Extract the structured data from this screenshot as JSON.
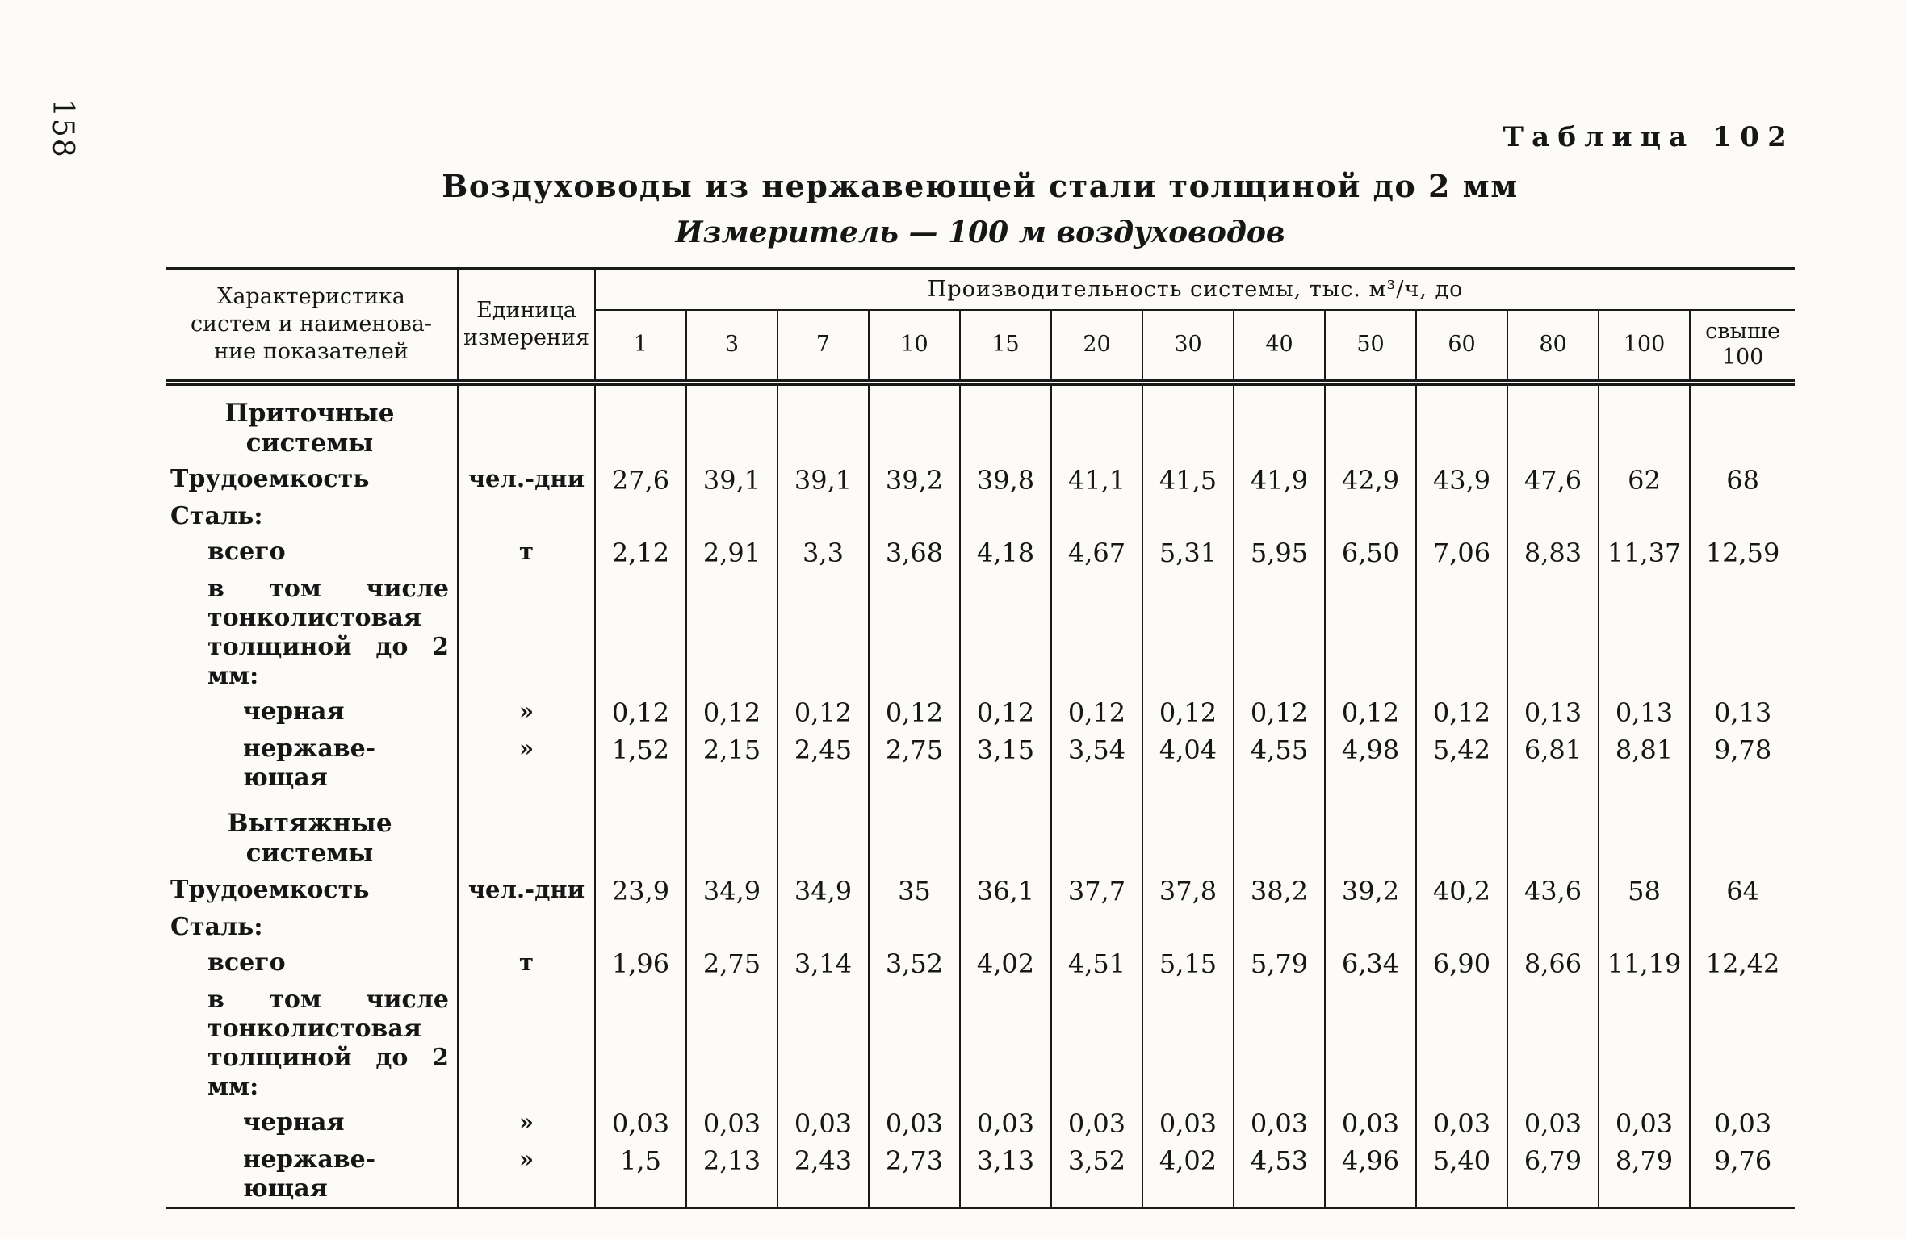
{
  "page": {
    "page_number": "158",
    "table_label": "Таблица 102",
    "title": "Воздуховоды из нержавеющей стали толщиной до 2 мм",
    "subtitle": "Измеритель — 100 м воздуховодов"
  },
  "table": {
    "col1_header": "Характеристика\nсистем и наименова-\nние показателей",
    "col2_header": "Единица\nизмерения",
    "span_header": "Производительность системы, тыс. м³/ч, до",
    "capacity_columns": [
      "1",
      "3",
      "7",
      "10",
      "15",
      "20",
      "30",
      "40",
      "50",
      "60",
      "80",
      "100",
      "свыше\n100"
    ],
    "rows": [
      {
        "type": "section",
        "label": "Приточные\nсистемы",
        "indent": 0,
        "unit": "",
        "values": []
      },
      {
        "type": "data",
        "label": "Трудоемкость",
        "indent": 0,
        "unit": "чел.-дни",
        "values": [
          "27,6",
          "39,1",
          "39,1",
          "39,2",
          "39,8",
          "41,1",
          "41,5",
          "41,9",
          "42,9",
          "43,9",
          "47,6",
          "62",
          "68"
        ]
      },
      {
        "type": "data",
        "label": "Сталь:",
        "indent": 0,
        "unit": "",
        "values": []
      },
      {
        "type": "data",
        "label": "всего",
        "indent": 1,
        "unit": "т",
        "values": [
          "2,12",
          "2,91",
          "3,3",
          "3,68",
          "4,18",
          "4,67",
          "5,31",
          "5,95",
          "6,50",
          "7,06",
          "8,83",
          "11,37",
          "12,59"
        ]
      },
      {
        "type": "data",
        "label": "в том числе тонколистовая толщиной до 2 мм:",
        "indent": 1,
        "unit": "",
        "values": [],
        "justify": true
      },
      {
        "type": "data",
        "label": "черная",
        "indent": 2,
        "unit": "»",
        "values": [
          "0,12",
          "0,12",
          "0,12",
          "0,12",
          "0,12",
          "0,12",
          "0,12",
          "0,12",
          "0,12",
          "0,12",
          "0,13",
          "0,13",
          "0,13"
        ]
      },
      {
        "type": "data",
        "label": "нержаве-\nющая",
        "indent": 2,
        "unit": "»",
        "values": [
          "1,52",
          "2,15",
          "2,45",
          "2,75",
          "3,15",
          "3,54",
          "4,04",
          "4,55",
          "4,98",
          "5,42",
          "6,81",
          "8,81",
          "9,78"
        ]
      },
      {
        "type": "section",
        "label": "Вытяжные\nсистемы",
        "indent": 0,
        "unit": "",
        "values": []
      },
      {
        "type": "data",
        "label": "Трудоемкость",
        "indent": 0,
        "unit": "чел.-дни",
        "values": [
          "23,9",
          "34,9",
          "34,9",
          "35",
          "36,1",
          "37,7",
          "37,8",
          "38,2",
          "39,2",
          "40,2",
          "43,6",
          "58",
          "64"
        ]
      },
      {
        "type": "data",
        "label": "Сталь:",
        "indent": 0,
        "unit": "",
        "values": []
      },
      {
        "type": "data",
        "label": "всего",
        "indent": 1,
        "unit": "т",
        "values": [
          "1,96",
          "2,75",
          "3,14",
          "3,52",
          "4,02",
          "4,51",
          "5,15",
          "5,79",
          "6,34",
          "6,90",
          "8,66",
          "11,19",
          "12,42"
        ]
      },
      {
        "type": "data",
        "label": "в том числе тонколистовая толщиной до 2 мм:",
        "indent": 1,
        "unit": "",
        "values": [],
        "justify": true
      },
      {
        "type": "data",
        "label": "черная",
        "indent": 2,
        "unit": "»",
        "values": [
          "0,03",
          "0,03",
          "0,03",
          "0,03",
          "0,03",
          "0,03",
          "0,03",
          "0,03",
          "0,03",
          "0,03",
          "0,03",
          "0,03",
          "0,03"
        ]
      },
      {
        "type": "data",
        "label": "нержаве-\nющая",
        "indent": 2,
        "unit": "»",
        "values": [
          "1,5",
          "2,13",
          "2,43",
          "2,73",
          "3,13",
          "3,52",
          "4,02",
          "4,53",
          "4,96",
          "5,40",
          "6,79",
          "8,79",
          "9,76"
        ]
      }
    ]
  }
}
